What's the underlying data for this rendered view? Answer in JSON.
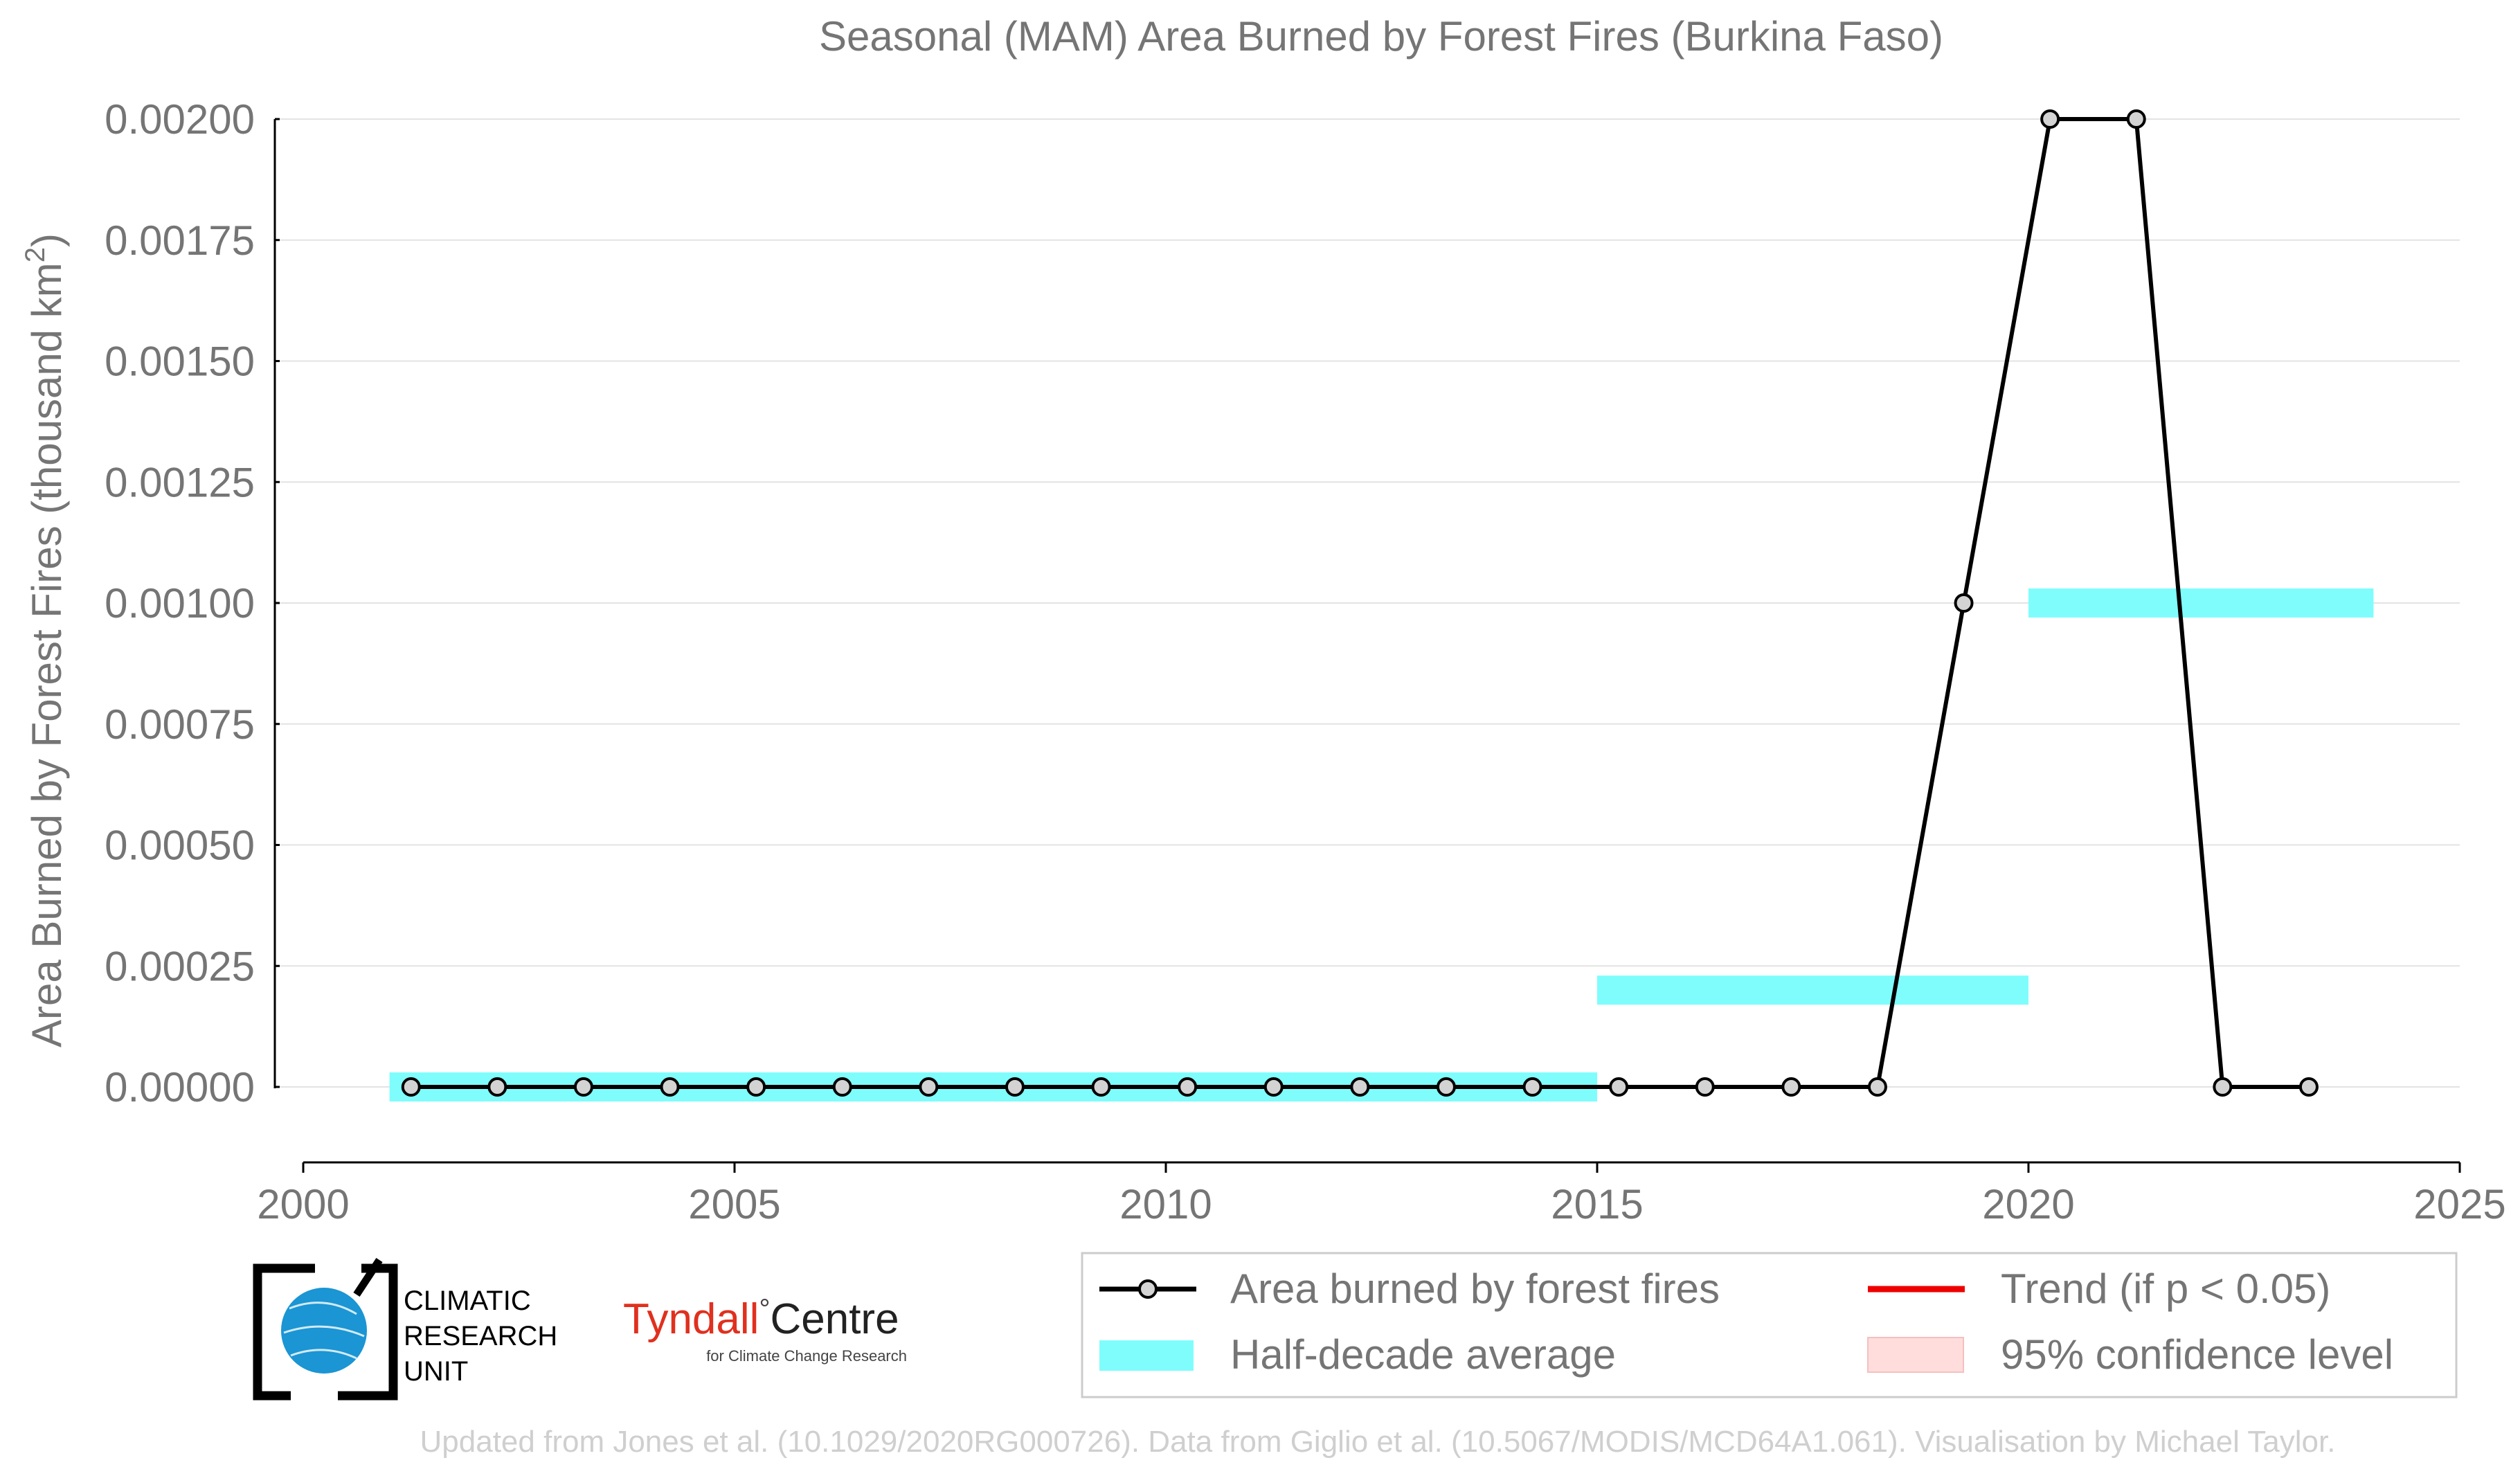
{
  "chart_data": {
    "type": "line",
    "title": "Seasonal (MAM) Area Burned by Forest Fires (Burkina Faso)",
    "xlabel": "",
    "ylabel": "Area Burned by Forest Fires (thousand km",
    "ylabel_sup": "2",
    "ylabel_close": ")",
    "xlim": [
      2000,
      2025
    ],
    "ylim": [
      -0.00016,
      0.002
    ],
    "x_ticks": [
      2000,
      2005,
      2010,
      2015,
      2020,
      2025
    ],
    "x_tick_labels": [
      "2000",
      "2005",
      "2010",
      "2015",
      "2020",
      "2025"
    ],
    "y_ticks": [
      0,
      0.00025,
      0.0005,
      0.00075,
      0.001,
      0.00125,
      0.0015,
      0.00175,
      0.002
    ],
    "y_tick_labels": [
      "0.00000",
      "0.00025",
      "0.00050",
      "0.00075",
      "0.00100",
      "0.00125",
      "0.00150",
      "0.00175",
      "0.00200"
    ],
    "grid": "horizontal",
    "series": [
      {
        "name": "Area burned by forest fires",
        "color": "#000000",
        "marker_fill": "#d3d3d3",
        "x": [
          2001.25,
          2002.25,
          2003.25,
          2004.25,
          2005.25,
          2006.25,
          2007.25,
          2008.25,
          2009.25,
          2010.25,
          2011.25,
          2012.25,
          2013.25,
          2014.25,
          2015.25,
          2016.25,
          2017.25,
          2018.25,
          2019.25,
          2020.25,
          2021.25,
          2022.25,
          2023.25
        ],
        "y": [
          0,
          0,
          0,
          0,
          0,
          0,
          0,
          0,
          0,
          0,
          0,
          0,
          0,
          0,
          0,
          0,
          0,
          0,
          0.001,
          0.002,
          0.002,
          0,
          0
        ]
      }
    ],
    "half_decade_averages": {
      "name": "Half-decade average",
      "color": "#7ffdfd",
      "bars": [
        {
          "x_start": 2001,
          "x_end": 2015,
          "value": 0
        },
        {
          "x_start": 2015,
          "x_end": 2020,
          "value": 0.0002
        },
        {
          "x_start": 2020,
          "x_end": 2024,
          "value": 0.001
        }
      ]
    },
    "legend": {
      "placement": "bottom-right",
      "entries": [
        {
          "label": "Area burned by forest fires",
          "kind": "line-marker",
          "color": "#000000"
        },
        {
          "label": "Trend (if p < 0.05)",
          "kind": "line",
          "color": "#ee0000"
        },
        {
          "label": "Half-decade average",
          "kind": "box",
          "color": "#7ffdfd"
        },
        {
          "label": "95% confidence level",
          "kind": "box",
          "color": "#ffdddd"
        }
      ]
    },
    "footer": "Updated from Jones et al. (10.1029/2020RG000726). Data from Giglio et al. (10.5067/MODIS/MCD64A1.061). Visualisation by Michael Taylor."
  },
  "logos": {
    "cru": [
      "CLIMATIC",
      "RESEARCH",
      "UNIT"
    ],
    "tyndall_main": "Tyndall",
    "tyndall_centre": "Centre",
    "tyndall_sub": "for Climate Change Research"
  },
  "colors": {
    "text": "#757575",
    "grid": "#e3e3e3",
    "tyndall_red": "#e0301e",
    "cru_blue": "#1b95d3"
  }
}
